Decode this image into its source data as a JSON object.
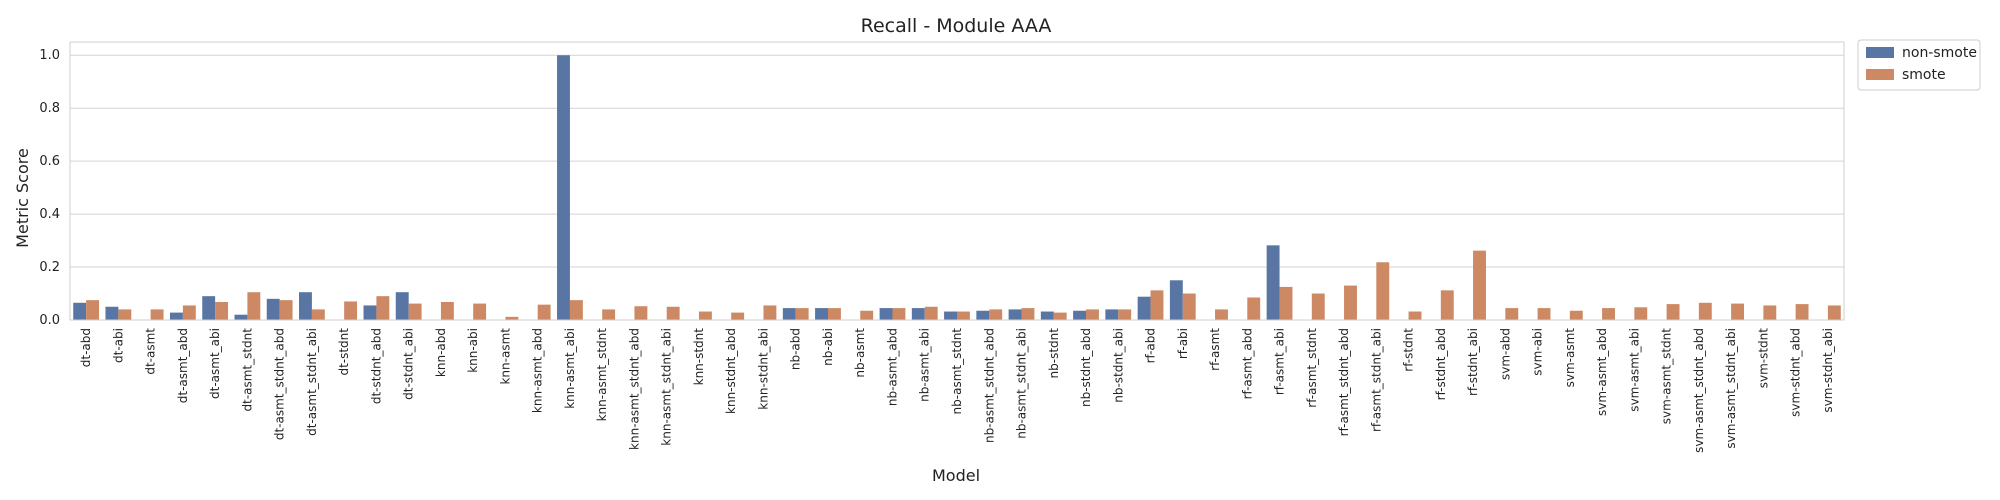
{
  "chart_data": {
    "type": "bar",
    "title": "Recall - Module AAA",
    "xlabel": "Model",
    "ylabel": "Metric Score",
    "ylim": [
      0,
      1.05
    ],
    "yticks": [
      "0.0",
      "0.2",
      "0.4",
      "0.6",
      "0.8",
      "1.0"
    ],
    "grid": true,
    "legend_position": "outside-top-right",
    "categories": [
      "dt-abd",
      "dt-abi",
      "dt-asmt",
      "dt-asmt_abd",
      "dt-asmt_abi",
      "dt-asmt_stdnt",
      "dt-asmt_stdnt_abd",
      "dt-asmt_stdnt_abi",
      "dt-stdnt",
      "dt-stdnt_abd",
      "dt-stdnt_abi",
      "knn-abd",
      "knn-abi",
      "knn-asmt",
      "knn-asmt_abd",
      "knn-asmt_abi",
      "knn-asmt_stdnt",
      "knn-asmt_stdnt_abd",
      "knn-asmt_stdnt_abi",
      "knn-stdnt",
      "knn-stdnt_abd",
      "knn-stdnt_abi",
      "nb-abd",
      "nb-abi",
      "nb-asmt",
      "nb-asmt_abd",
      "nb-asmt_abi",
      "nb-asmt_stdnt",
      "nb-asmt_stdnt_abd",
      "nb-asmt_stdnt_abi",
      "nb-stdnt",
      "nb-stdnt_abd",
      "nb-stdnt_abi",
      "rf-abd",
      "rf-abi",
      "rf-asmt",
      "rf-asmt_abd",
      "rf-asmt_abi",
      "rf-asmt_stdnt",
      "rf-asmt_stdnt_abd",
      "rf-asmt_stdnt_abi",
      "rf-stdnt",
      "rf-stdnt_abd",
      "rf-stdnt_abi",
      "svm-abd",
      "svm-abi",
      "svm-asmt",
      "svm-asmt_abd",
      "svm-asmt_abi",
      "svm-asmt_stdnt",
      "svm-asmt_stdnt_abd",
      "svm-asmt_stdnt_abi",
      "svm-stdnt",
      "svm-stdnt_abd",
      "svm-stdnt_abi"
    ],
    "series": [
      {
        "name": "non-smote",
        "color": "#5875a4",
        "values": [
          0.065,
          0.05,
          0,
          0.028,
          0.09,
          0.02,
          0.08,
          0.105,
          0,
          0.055,
          0.105,
          0,
          0,
          0,
          0,
          1.0,
          0,
          0,
          0,
          0,
          0,
          0,
          0.045,
          0.045,
          0,
          0.045,
          0.045,
          0.032,
          0.035,
          0.04,
          0.032,
          0.035,
          0.04,
          0.088,
          0.15,
          0,
          0,
          0.282,
          0,
          0,
          0,
          0,
          0,
          0,
          0,
          0,
          0,
          0,
          0,
          0,
          0,
          0,
          0,
          0,
          0
        ]
      },
      {
        "name": "smote",
        "color": "#cc8963",
        "values": [
          0.075,
          0.04,
          0.04,
          0.055,
          0.068,
          0.105,
          0.075,
          0.04,
          0.07,
          0.09,
          0.062,
          0.068,
          0.062,
          0.012,
          0.058,
          0.075,
          0.04,
          0.052,
          0.05,
          0.032,
          0.028,
          0.055,
          0.045,
          0.045,
          0.035,
          0.045,
          0.05,
          0.032,
          0.04,
          0.045,
          0.028,
          0.04,
          0.04,
          0.112,
          0.1,
          0.04,
          0.085,
          0.125,
          0.1,
          0.13,
          0.218,
          0.032,
          0.112,
          0.262,
          0.045,
          0.045,
          0.035,
          0.045,
          0.048,
          0.06,
          0.065,
          0.062,
          0.055,
          0.06,
          0.055
        ]
      }
    ]
  }
}
